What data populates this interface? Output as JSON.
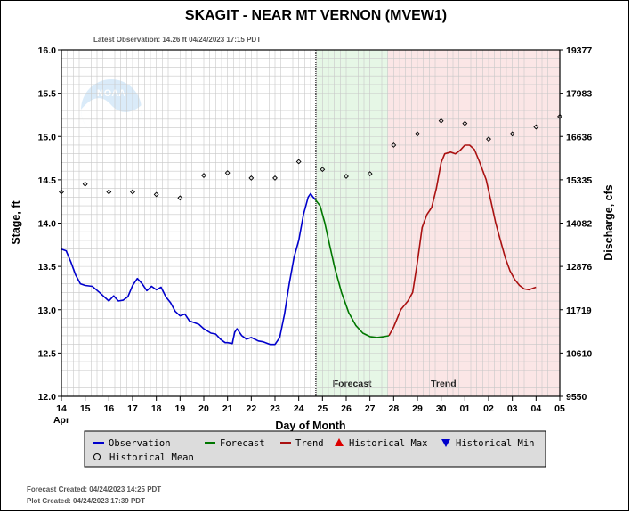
{
  "title": "SKAGIT - NEAR MT VERNON  (MVEW1)",
  "latest_observation": "Latest Observation: 14.26 ft 04/24/2023 17:15 PDT",
  "footer": {
    "forecast_created": "Forecast Created: 04/24/2023 14:25 PDT",
    "plot_created": "Plot Created: 04/24/2023 17:39 PDT"
  },
  "logo_text": "NOAA",
  "colors": {
    "observation": "#0000cc",
    "forecast": "#007700",
    "trend": "#aa1111",
    "forecast_band": "#e6f7e6",
    "trend_band": "#fbe6e6",
    "grid": "#c8c8c8",
    "legend_bg": "#dcdcdc"
  },
  "chart_data": {
    "type": "line",
    "title": "SKAGIT - NEAR MT VERNON  (MVEW1)",
    "xlabel": "Day of Month",
    "ylabel": "Stage, ft",
    "ylabel_right": "Discharge, cfs",
    "x_ticks": [
      "14",
      "15",
      "16",
      "17",
      "18",
      "19",
      "20",
      "21",
      "22",
      "23",
      "24",
      "25",
      "26",
      "27",
      "28",
      "29",
      "30",
      "01",
      "02",
      "03",
      "04",
      "05"
    ],
    "x_month_label": "Apr",
    "ylim": [
      12.0,
      16.0
    ],
    "y_ticks": [
      "12.0",
      "12.5",
      "13.0",
      "13.5",
      "14.0",
      "14.5",
      "15.0",
      "15.5",
      "16.0"
    ],
    "y_right_ticks": [
      "9550",
      "10610",
      "11719",
      "12876",
      "14082",
      "15335",
      "16636",
      "17983",
      "19377"
    ],
    "grid": true,
    "bands": [
      {
        "name": "Forecast",
        "start": 24.75,
        "end": 27.75
      },
      {
        "name": "Trend",
        "start": 27.75,
        "end": 35.0
      }
    ],
    "current_time_marker": 24.72,
    "series": [
      {
        "name": "Observation",
        "style": "line",
        "points": [
          [
            14.0,
            13.7
          ],
          [
            14.2,
            13.68
          ],
          [
            14.4,
            13.55
          ],
          [
            14.6,
            13.4
          ],
          [
            14.8,
            13.3
          ],
          [
            15.0,
            13.28
          ],
          [
            15.3,
            13.27
          ],
          [
            15.6,
            13.2
          ],
          [
            15.8,
            13.15
          ],
          [
            16.0,
            13.1
          ],
          [
            16.2,
            13.16
          ],
          [
            16.4,
            13.1
          ],
          [
            16.6,
            13.11
          ],
          [
            16.8,
            13.15
          ],
          [
            17.0,
            13.28
          ],
          [
            17.2,
            13.36
          ],
          [
            17.4,
            13.3
          ],
          [
            17.6,
            13.22
          ],
          [
            17.8,
            13.27
          ],
          [
            18.0,
            13.23
          ],
          [
            18.2,
            13.26
          ],
          [
            18.4,
            13.15
          ],
          [
            18.6,
            13.08
          ],
          [
            18.8,
            12.98
          ],
          [
            19.0,
            12.93
          ],
          [
            19.2,
            12.95
          ],
          [
            19.4,
            12.87
          ],
          [
            19.6,
            12.85
          ],
          [
            19.8,
            12.83
          ],
          [
            20.0,
            12.78
          ],
          [
            20.3,
            12.73
          ],
          [
            20.5,
            12.72
          ],
          [
            20.7,
            12.66
          ],
          [
            20.9,
            12.62
          ],
          [
            21.0,
            12.62
          ],
          [
            21.2,
            12.61
          ],
          [
            21.3,
            12.74
          ],
          [
            21.4,
            12.78
          ],
          [
            21.6,
            12.7
          ],
          [
            21.8,
            12.66
          ],
          [
            22.0,
            12.68
          ],
          [
            22.3,
            12.64
          ],
          [
            22.5,
            12.63
          ],
          [
            22.8,
            12.6
          ],
          [
            23.0,
            12.6
          ],
          [
            23.2,
            12.68
          ],
          [
            23.4,
            12.95
          ],
          [
            23.6,
            13.3
          ],
          [
            23.8,
            13.6
          ],
          [
            24.0,
            13.8
          ],
          [
            24.2,
            14.1
          ],
          [
            24.4,
            14.3
          ],
          [
            24.5,
            14.34
          ],
          [
            24.6,
            14.3
          ],
          [
            24.7,
            14.27
          ]
        ]
      },
      {
        "name": "Forecast",
        "style": "line",
        "points": [
          [
            24.7,
            14.27
          ],
          [
            24.9,
            14.2
          ],
          [
            25.1,
            14.0
          ],
          [
            25.3,
            13.75
          ],
          [
            25.5,
            13.5
          ],
          [
            25.8,
            13.2
          ],
          [
            26.1,
            12.97
          ],
          [
            26.4,
            12.82
          ],
          [
            26.7,
            12.73
          ],
          [
            27.0,
            12.69
          ],
          [
            27.3,
            12.68
          ],
          [
            27.6,
            12.69
          ],
          [
            27.8,
            12.7
          ]
        ]
      },
      {
        "name": "Trend",
        "style": "line",
        "points": [
          [
            27.8,
            12.7
          ],
          [
            28.0,
            12.8
          ],
          [
            28.3,
            13.0
          ],
          [
            28.6,
            13.1
          ],
          [
            28.8,
            13.2
          ],
          [
            29.0,
            13.55
          ],
          [
            29.2,
            13.95
          ],
          [
            29.4,
            14.1
          ],
          [
            29.6,
            14.18
          ],
          [
            29.8,
            14.4
          ],
          [
            30.0,
            14.7
          ],
          [
            30.15,
            14.8
          ],
          [
            30.4,
            14.82
          ],
          [
            30.6,
            14.8
          ],
          [
            30.8,
            14.84
          ],
          [
            31.0,
            14.9
          ],
          [
            31.2,
            14.9
          ],
          [
            31.4,
            14.85
          ],
          [
            31.6,
            14.72
          ],
          [
            31.9,
            14.5
          ],
          [
            32.1,
            14.25
          ],
          [
            32.3,
            14.0
          ],
          [
            32.5,
            13.8
          ],
          [
            32.7,
            13.6
          ],
          [
            32.9,
            13.45
          ],
          [
            33.1,
            13.35
          ],
          [
            33.3,
            13.28
          ],
          [
            33.5,
            13.24
          ],
          [
            33.7,
            13.23
          ],
          [
            33.9,
            13.25
          ],
          [
            34.0,
            13.26
          ]
        ]
      },
      {
        "name": "Historical Mean",
        "style": "marker",
        "points": [
          [
            14.0,
            14.36
          ],
          [
            15.0,
            14.45
          ],
          [
            16.0,
            14.36
          ],
          [
            17.0,
            14.36
          ],
          [
            18.0,
            14.33
          ],
          [
            19.0,
            14.29
          ],
          [
            20.0,
            14.55
          ],
          [
            21.0,
            14.58
          ],
          [
            22.0,
            14.52
          ],
          [
            23.0,
            14.52
          ],
          [
            24.0,
            14.71
          ],
          [
            25.0,
            14.62
          ],
          [
            26.0,
            14.54
          ],
          [
            27.0,
            14.57
          ],
          [
            28.0,
            14.9
          ],
          [
            29.0,
            15.03
          ],
          [
            30.0,
            15.18
          ],
          [
            31.0,
            15.15
          ],
          [
            32.0,
            14.97
          ],
          [
            33.0,
            15.03
          ],
          [
            34.0,
            15.11
          ],
          [
            35.0,
            15.23
          ]
        ]
      }
    ],
    "legend": [
      {
        "label": "Observation",
        "kind": "line",
        "color": "#0000cc"
      },
      {
        "label": "Forecast",
        "kind": "line",
        "color": "#007700"
      },
      {
        "label": "Trend",
        "kind": "line",
        "color": "#aa1111"
      },
      {
        "label": "Historical Max",
        "kind": "triangle-up",
        "color": "#dd0000"
      },
      {
        "label": "Historical Min",
        "kind": "triangle-down",
        "color": "#0000cc"
      },
      {
        "label": "Historical Mean",
        "kind": "circle",
        "color": "#000000"
      }
    ]
  }
}
